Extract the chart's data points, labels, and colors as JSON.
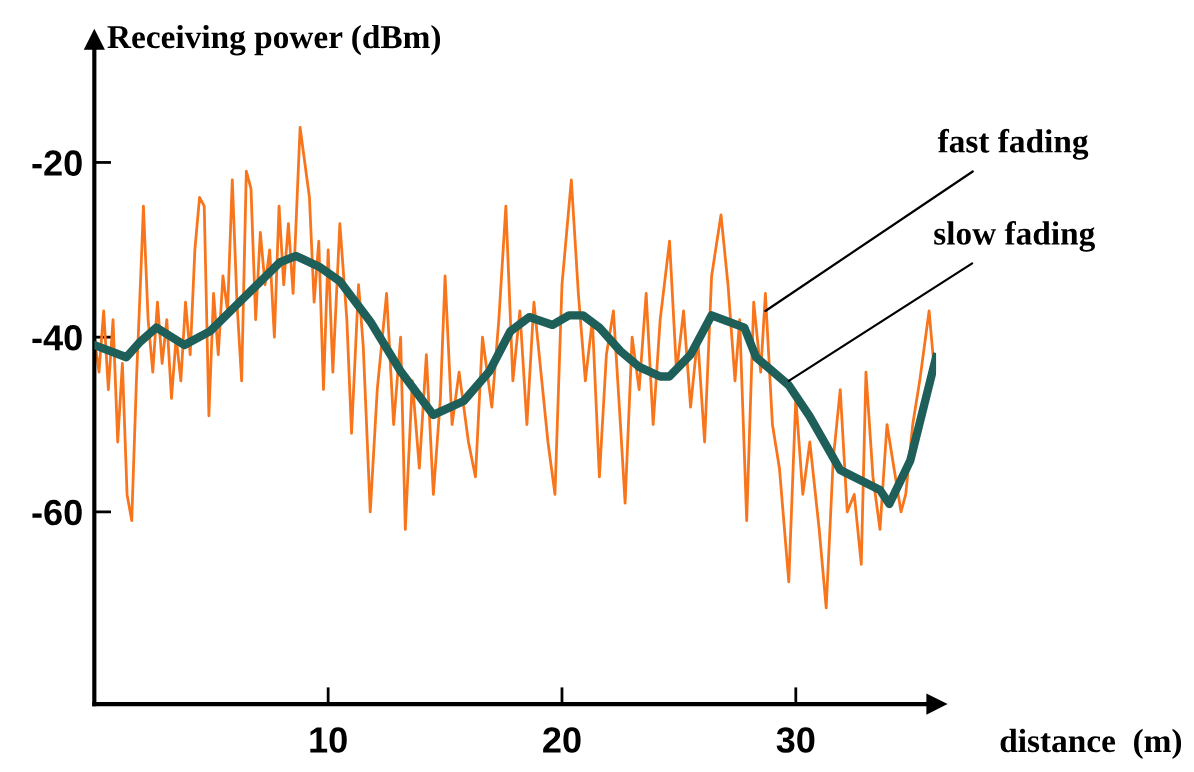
{
  "chart_data": {
    "type": "line",
    "xlabel": "distance  (m)",
    "ylabel": "Receiving power (dBm)",
    "xlim": [
      0,
      36
    ],
    "ylim": [
      -82,
      -6
    ],
    "xticks": [
      10,
      20,
      30
    ],
    "yticks": [
      -60,
      -40,
      -20
    ],
    "grid": false,
    "marker": "none",
    "line_style": "solid",
    "series": [
      {
        "color": "#f8751c",
        "x": [
          0,
          0.2,
          0.4,
          0.6,
          0.8,
          1.0,
          1.2,
          1.4,
          1.6,
          1.8,
          2.0,
          2.1,
          2.3,
          2.5,
          2.7,
          2.9,
          3.1,
          3.3,
          3.5,
          3.7,
          3.9,
          4.1,
          4.3,
          4.5,
          4.7,
          4.9,
          5.1,
          5.3,
          5.5,
          5.7,
          5.9,
          6.1,
          6.3,
          6.5,
          6.7,
          6.9,
          7.1,
          7.3,
          7.5,
          7.7,
          7.9,
          8.1,
          8.3,
          8.5,
          8.8,
          9.0,
          9.2,
          9.4,
          9.6,
          9.8,
          10.0,
          10.2,
          10.5,
          10.8,
          11.0,
          11.3,
          11.5,
          11.8,
          12.1,
          12.5,
          12.8,
          13.1,
          13.3,
          13.6,
          13.9,
          14.2,
          14.5,
          14.8,
          15.0,
          15.3,
          15.6,
          16.0,
          16.3,
          16.6,
          17.0,
          17.3,
          17.6,
          17.9,
          18.2,
          18.5,
          18.8,
          19.1,
          19.4,
          19.7,
          20.0,
          20.4,
          20.7,
          21.0,
          21.3,
          21.6,
          21.9,
          22.2,
          22.5,
          22.7,
          23.0,
          23.3,
          23.6,
          23.9,
          24.2,
          24.6,
          24.9,
          25.2,
          25.5,
          25.8,
          26.1,
          26.4,
          26.8,
          27.1,
          27.4,
          27.6,
          27.9,
          28.2,
          28.5,
          28.7,
          29.0,
          29.3,
          29.7,
          30.0,
          30.3,
          30.6,
          31.0,
          31.3,
          31.6,
          31.9,
          32.2,
          32.5,
          32.8,
          33.0,
          33.3,
          33.6,
          33.9,
          34.2,
          34.5,
          34.7,
          35.0,
          35.3,
          35.7,
          35.9
        ],
        "values": [
          -40,
          -44,
          -37,
          -46,
          -38,
          -52,
          -43,
          -58,
          -61,
          -45,
          -32,
          -25,
          -38,
          -44,
          -36,
          -43,
          -38,
          -47,
          -40,
          -45,
          -36,
          -42,
          -30,
          -24,
          -25,
          -49,
          -35,
          -42,
          -33,
          -37,
          -22,
          -36,
          -45,
          -21,
          -23,
          -38,
          -28,
          -34,
          -30,
          -40,
          -25,
          -34,
          -27,
          -35,
          -16,
          -20,
          -24,
          -36,
          -29,
          -46,
          -30,
          -44,
          -27,
          -38,
          -51,
          -34,
          -41,
          -60,
          -46,
          -35,
          -50,
          -40,
          -62,
          -45,
          -55,
          -42,
          -58,
          -47,
          -33,
          -50,
          -44,
          -52,
          -56,
          -40,
          -48,
          -38,
          -25,
          -45,
          -37,
          -50,
          -36,
          -44,
          -52,
          -58,
          -34,
          -22,
          -35,
          -45,
          -38,
          -56,
          -42,
          -37,
          -50,
          -59,
          -40,
          -46,
          -35,
          -50,
          -38,
          -29,
          -44,
          -37,
          -48,
          -40,
          -52,
          -33,
          -26,
          -34,
          -45,
          -38,
          -61,
          -36,
          -44,
          -35,
          -50,
          -55,
          -68,
          -47,
          -58,
          -52,
          -62,
          -71,
          -54,
          -46,
          -60,
          -58,
          -66,
          -44,
          -56,
          -62,
          -50,
          -55,
          -60,
          -58,
          -50,
          -45,
          -37,
          -43
        ]
      },
      {
        "color": "#1e5f5a",
        "x": [
          0,
          1.37,
          1.97,
          2.65,
          3.85,
          4.96,
          6.24,
          7.95,
          8.63,
          9.66,
          10.5,
          11.8,
          13.1,
          14.5,
          15.8,
          16.9,
          17.8,
          18.6,
          19.6,
          20.3,
          20.9,
          21.6,
          22.5,
          23.3,
          24.2,
          24.6,
          25.5,
          26.4,
          27.8,
          28.3,
          29.7,
          30.6,
          31.9,
          33.6,
          34.0,
          34.9,
          36.0
        ],
        "values": [
          -40.9,
          -42.3,
          -40.5,
          -38.9,
          -40.9,
          -39.3,
          -35.9,
          -31.4,
          -30.7,
          -32.0,
          -33.6,
          -38.2,
          -43.9,
          -48.9,
          -47.3,
          -43.9,
          -39.3,
          -37.7,
          -38.6,
          -37.5,
          -37.5,
          -38.9,
          -41.6,
          -43.4,
          -44.5,
          -44.5,
          -42.0,
          -37.5,
          -38.9,
          -42.3,
          -45.5,
          -49.1,
          -55.2,
          -57.5,
          -59.1,
          -54.1,
          -42.3
        ]
      }
    ],
    "annotations": [
      {
        "text": "fast fading",
        "x": 28.7,
        "y": -37
      },
      {
        "text": "slow fading",
        "x": 29.7,
        "y": -45
      }
    ]
  }
}
